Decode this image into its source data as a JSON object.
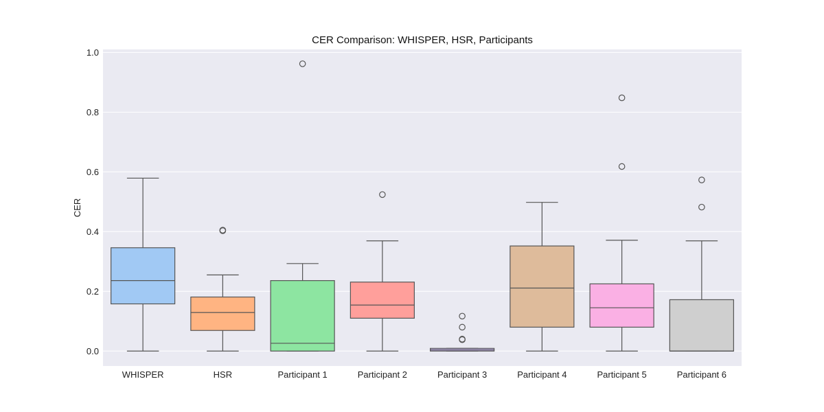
{
  "chart_data": {
    "type": "boxplot",
    "title": "CER Comparison: WHISPER, HSR, Participants",
    "xlabel": "",
    "ylabel": "CER",
    "ylim": [
      -0.05,
      1.01
    ],
    "yticks": [
      0.0,
      0.2,
      0.4,
      0.6,
      0.8,
      1.0
    ],
    "ytick_labels": [
      "0.0",
      "0.2",
      "0.4",
      "0.6",
      "0.8",
      "1.0"
    ],
    "grid": true,
    "background_color": "#eaeaf2",
    "categories": [
      "WHISPER",
      "HSR",
      "Participant 1",
      "Participant 2",
      "Participant 3",
      "Participant 4",
      "Participant 5",
      "Participant 6"
    ],
    "series": [
      {
        "name": "WHISPER",
        "color": "#a1c9f4",
        "whislo": 0.0,
        "q1": 0.158,
        "med": 0.236,
        "q3": 0.346,
        "whishi": 0.579,
        "fliers": []
      },
      {
        "name": "HSR",
        "color": "#ffb482",
        "whislo": 0.0,
        "q1": 0.069,
        "med": 0.129,
        "q3": 0.181,
        "whishi": 0.255,
        "fliers": [
          0.403,
          0.405
        ]
      },
      {
        "name": "Participant 1",
        "color": "#8de5a1",
        "whislo": 0.0,
        "q1": 0.0,
        "med": 0.026,
        "q3": 0.236,
        "whishi": 0.293,
        "fliers": [
          0.962
        ]
      },
      {
        "name": "Participant 2",
        "color": "#ff9f9b",
        "whislo": 0.0,
        "q1": 0.11,
        "med": 0.154,
        "q3": 0.231,
        "whishi": 0.369,
        "fliers": [
          0.524
        ]
      },
      {
        "name": "Participant 3",
        "color": "#d0bbff",
        "whislo": 0.0,
        "q1": 0.0,
        "med": 0.004,
        "q3": 0.009,
        "whishi": 0.009,
        "fliers": [
          0.038,
          0.04,
          0.08,
          0.117
        ]
      },
      {
        "name": "Participant 4",
        "color": "#debb9b",
        "whislo": 0.0,
        "q1": 0.08,
        "med": 0.211,
        "q3": 0.352,
        "whishi": 0.498,
        "fliers": []
      },
      {
        "name": "Participant 5",
        "color": "#fab0e4",
        "whislo": 0.0,
        "q1": 0.08,
        "med": 0.145,
        "q3": 0.225,
        "whishi": 0.371,
        "fliers": [
          0.618,
          0.848
        ]
      },
      {
        "name": "Participant 6",
        "color": "#cfcfcf",
        "whislo": 0.0,
        "q1": 0.0,
        "med": 0.0,
        "q3": 0.172,
        "whishi": 0.369,
        "fliers": [
          0.482,
          0.573
        ]
      }
    ]
  }
}
